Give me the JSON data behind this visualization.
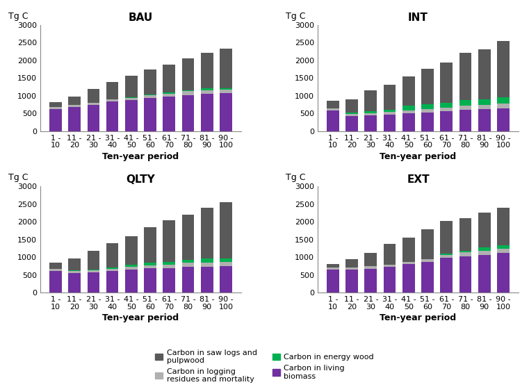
{
  "categories": [
    "1 -\n10",
    "11 -\n20",
    "21 -\n30",
    "31 -\n40",
    "41 -\n50",
    "51 -\n60",
    "61 -\n70",
    "71 -\n80",
    "81 -\n90",
    "90 -\n100"
  ],
  "scenarios": [
    "BAU",
    "INT",
    "QLTY",
    "EXT"
  ],
  "colors": {
    "living_biomass": "#7030A0",
    "logging_residues": "#B0B0B0",
    "energy_wood": "#00B050",
    "saw_logs": "#595959"
  },
  "data": {
    "BAU": {
      "living_biomass": [
        630,
        680,
        740,
        830,
        875,
        930,
        975,
        1010,
        1050,
        1070
      ],
      "logging_residues": [
        60,
        60,
        60,
        60,
        70,
        80,
        80,
        130,
        100,
        100
      ],
      "energy_wood": [
        0,
        0,
        0,
        10,
        20,
        30,
        30,
        20,
        55,
        50
      ],
      "saw_logs": [
        130,
        240,
        400,
        490,
        590,
        710,
        800,
        900,
        1010,
        1100
      ]
    },
    "INT": {
      "living_biomass": [
        580,
        430,
        450,
        470,
        500,
        530,
        565,
        600,
        620,
        645
      ],
      "logging_residues": [
        55,
        55,
        60,
        70,
        80,
        90,
        100,
        120,
        120,
        130
      ],
      "energy_wood": [
        15,
        35,
        60,
        70,
        140,
        140,
        130,
        160,
        160,
        175
      ],
      "saw_logs": [
        200,
        370,
        580,
        690,
        830,
        1000,
        1150,
        1330,
        1410,
        1600
      ]
    },
    "QLTY": {
      "living_biomass": [
        615,
        545,
        565,
        615,
        655,
        685,
        685,
        725,
        735,
        755
      ],
      "logging_residues": [
        60,
        60,
        65,
        65,
        75,
        85,
        95,
        115,
        115,
        115
      ],
      "energy_wood": [
        0,
        20,
        20,
        30,
        65,
        85,
        80,
        80,
        115,
        100
      ],
      "saw_logs": [
        165,
        340,
        540,
        680,
        805,
        990,
        1190,
        1280,
        1430,
        1580
      ]
    },
    "EXT": {
      "living_biomass": [
        650,
        650,
        680,
        720,
        800,
        870,
        975,
        1020,
        1060,
        1120
      ],
      "logging_residues": [
        60,
        60,
        65,
        70,
        75,
        85,
        95,
        115,
        115,
        115
      ],
      "energy_wood": [
        0,
        0,
        0,
        0,
        0,
        0,
        40,
        50,
        100,
        100
      ],
      "saw_logs": [
        90,
        230,
        380,
        590,
        680,
        830,
        920,
        920,
        990,
        1060
      ]
    }
  },
  "ylim": [
    0,
    3000
  ],
  "yticks": [
    0,
    500,
    1000,
    1500,
    2000,
    2500,
    3000
  ],
  "xlabel": "Ten-year period",
  "ylabel": "Tg C",
  "legend": [
    {
      "label": "Carbon in saw logs and\npulpwood",
      "color": "#595959"
    },
    {
      "label": "Carbon in logging\nresidues and mortality",
      "color": "#B0B0B0"
    },
    {
      "label": "Carbon in energy wood",
      "color": "#00B050"
    },
    {
      "label": "Carbon in living\nbiomass",
      "color": "#7030A0"
    }
  ],
  "title_fontsize": 11,
  "axis_fontsize": 9,
  "tick_fontsize": 8
}
